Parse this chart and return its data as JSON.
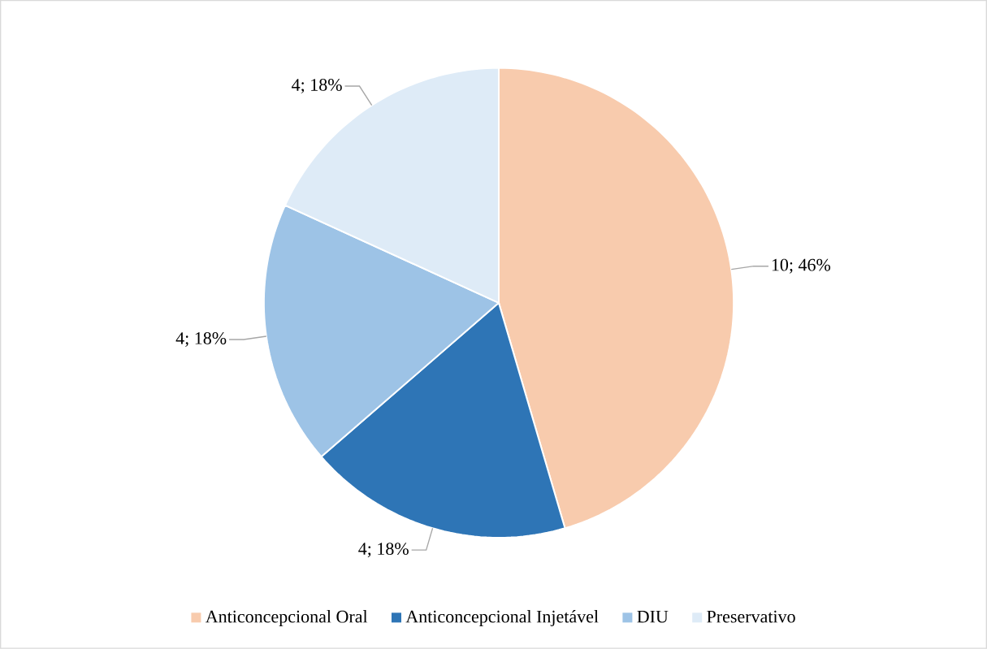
{
  "chart_data": {
    "type": "pie",
    "categories": [
      "Anticoncepcional Oral",
      "Anticoncepcional Injetável",
      "DIU",
      "Preservativo"
    ],
    "values": [
      10,
      4,
      4,
      4
    ],
    "colors": [
      "#f8cbad",
      "#2e75b6",
      "#9dc3e6",
      "#deebf7"
    ],
    "value_labels": [
      "10; 46%",
      "4; 18%",
      "4; 18%",
      "4; 18%"
    ],
    "legend": "bottom"
  }
}
